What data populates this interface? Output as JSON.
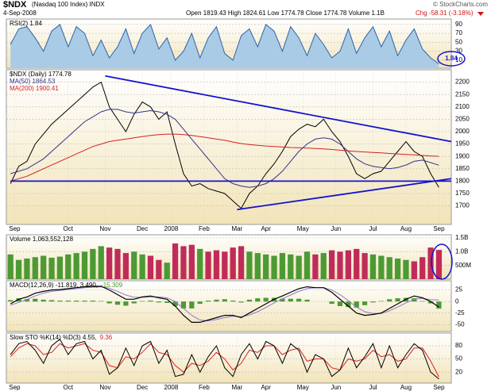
{
  "header": {
    "symbol": "$NDX",
    "name": "(Nasdaq 100 Index) INDX",
    "date": "4-Sep-2008",
    "quote": "Open 1819.43 High 1824.61 Low 1774.78 Close 1774.78 Volume 1.1B",
    "change": "Chg -58.31 (-3.18%)",
    "source": "© StockCharts.com"
  },
  "chart_data": [
    {
      "type": "line",
      "xlim": [
        -0.5,
        53.5
      ],
      "ylim": [
        1625,
        2250
      ],
      "yticks": [
        1700,
        1750,
        1800,
        1850,
        1900,
        1950,
        2000,
        2050,
        2100,
        2150,
        2200
      ],
      "xticks": [
        {
          "value": 0.5,
          "label": "Sep"
        },
        {
          "value": 7,
          "label": "Oct"
        },
        {
          "value": 11.5,
          "label": "Nov"
        },
        {
          "value": 16,
          "label": "Dec"
        },
        {
          "value": 19.5,
          "label": "2008"
        },
        {
          "value": 23.5,
          "label": "Feb"
        },
        {
          "value": 27.5,
          "label": "Mar"
        },
        {
          "value": 31,
          "label": "Apr"
        },
        {
          "value": 35.5,
          "label": "May"
        },
        {
          "value": 39.5,
          "label": "Jun"
        },
        {
          "value": 44,
          "label": "Jul"
        },
        {
          "value": 48,
          "label": "Aug"
        },
        {
          "value": 52,
          "label": "Sep"
        }
      ],
      "series": [
        {
          "name": "$NDX (Daily) 1774.78",
          "color": "#000000",
          "values": [
            1790,
            1860,
            1880,
            1950,
            1990,
            2030,
            2060,
            2090,
            2120,
            2150,
            2180,
            2200,
            2100,
            2050,
            2000,
            2070,
            2120,
            2100,
            2050,
            2080,
            1950,
            1830,
            1780,
            1790,
            1770,
            1760,
            1750,
            1720,
            1690,
            1750,
            1780,
            1830,
            1870,
            1920,
            1980,
            2010,
            2030,
            2020,
            2050,
            2000,
            1960,
            1900,
            1830,
            1810,
            1830,
            1840,
            1880,
            1920,
            1960,
            1920,
            1900,
            1830,
            1774.78
          ]
        },
        {
          "name": "MA(50) 1864.53",
          "color": "#34348a",
          "values": [
            1830,
            1840,
            1850,
            1870,
            1890,
            1920,
            1950,
            1980,
            2010,
            2040,
            2060,
            2080,
            2090,
            2090,
            2080,
            2075,
            2080,
            2085,
            2080,
            2070,
            2050,
            2010,
            1970,
            1930,
            1890,
            1850,
            1810,
            1790,
            1780,
            1775,
            1780,
            1790,
            1810,
            1840,
            1880,
            1920,
            1950,
            1970,
            1975,
            1970,
            1950,
            1920,
            1890,
            1870,
            1860,
            1855,
            1850,
            1855,
            1865,
            1880,
            1885,
            1875,
            1864.53
          ]
        },
        {
          "name": "MA(200) 1900.41",
          "color": "#d42020",
          "values": [
            1800,
            1810,
            1820,
            1835,
            1850,
            1865,
            1880,
            1895,
            1910,
            1925,
            1940,
            1950,
            1960,
            1965,
            1970,
            1975,
            1980,
            1985,
            1988,
            1990,
            1990,
            1988,
            1985,
            1980,
            1975,
            1970,
            1965,
            1958,
            1952,
            1948,
            1945,
            1942,
            1940,
            1938,
            1936,
            1935,
            1934,
            1932,
            1930,
            1928,
            1925,
            1922,
            1920,
            1918,
            1916,
            1914,
            1912,
            1910,
            1908,
            1906,
            1904,
            1902,
            1900.41
          ]
        }
      ],
      "trendlines": [
        {
          "start": [
            11.5,
            2225
          ],
          "end": [
            53.5,
            1960
          ]
        },
        {
          "start": [
            27.5,
            1685
          ],
          "end": [
            53.5,
            1810
          ]
        },
        {
          "start": [
            0,
            1800
          ],
          "end": [
            53.5,
            1800
          ]
        }
      ],
      "trendline_color": "#1414d0"
    },
    {
      "type": "rsi",
      "label": "RSI(2) 1.84",
      "annotation": "1.84",
      "color": "#2f62a8",
      "fill": "#a9cbe6",
      "xlim": [
        -0.5,
        53.5
      ],
      "ylim": [
        -8,
        102
      ],
      "yticks": [
        10,
        30,
        50,
        70,
        90
      ],
      "values": [
        45,
        80,
        85,
        60,
        30,
        75,
        90,
        40,
        85,
        70,
        20,
        55,
        15,
        40,
        80,
        25,
        70,
        90,
        35,
        60,
        10,
        30,
        70,
        15,
        60,
        85,
        25,
        10,
        65,
        80,
        40,
        90,
        75,
        30,
        85,
        60,
        20,
        70,
        45,
        15,
        30,
        80,
        25,
        60,
        85,
        40,
        75,
        20,
        55,
        80,
        35,
        15,
        1.84
      ]
    },
    {
      "type": "volume",
      "label": "Volume 1,063,552,128",
      "up_color": "#4c9a34",
      "down_color": "#c02c5a",
      "xlim": [
        -0.5,
        53.5
      ],
      "ylim": [
        0,
        1615
      ],
      "yticks": [
        {
          "value": 500,
          "label": "500M"
        },
        {
          "value": 1000,
          "label": "1.0B"
        },
        {
          "value": 1500,
          "label": "1.5B"
        }
      ],
      "values": [
        900,
        700,
        750,
        800,
        850,
        780,
        820,
        900,
        950,
        1000,
        1100,
        1200,
        1150,
        1100,
        950,
        1000,
        900,
        850,
        700,
        600,
        1300,
        1200,
        1250,
        1100,
        1000,
        1050,
        1000,
        1150,
        1200,
        1000,
        950,
        900,
        850,
        950,
        900,
        850,
        1000,
        900,
        950,
        1050,
        1000,
        1050,
        1100,
        950,
        900,
        850,
        800,
        750,
        700,
        650,
        800,
        1150,
        1063.55
      ]
    },
    {
      "type": "macd",
      "label": "MACD(12,26,9) -11.819, 3.490,",
      "hist_label": "-15.309",
      "xlim": [
        -0.5,
        53.5
      ],
      "ylim": [
        -65,
        45
      ],
      "yticks": [
        -50,
        -25,
        0,
        25
      ],
      "series": [
        {
          "color": "#000000",
          "values": [
            -5,
            5,
            10,
            18,
            22,
            25,
            26,
            28,
            30,
            32,
            33,
            33,
            25,
            15,
            5,
            5,
            10,
            12,
            8,
            5,
            -10,
            -30,
            -45,
            -45,
            -40,
            -35,
            -30,
            -30,
            -35,
            -25,
            -15,
            -5,
            5,
            12,
            20,
            28,
            32,
            30,
            30,
            20,
            5,
            -10,
            -25,
            -30,
            -28,
            -25,
            -15,
            -5,
            5,
            12,
            8,
            0,
            -11.819
          ]
        },
        {
          "color": "#8a7ad0",
          "values": [
            -8,
            -2,
            5,
            12,
            18,
            22,
            24,
            26,
            28,
            30,
            31,
            32,
            29,
            22,
            14,
            9,
            9,
            10,
            10,
            8,
            0,
            -15,
            -30,
            -40,
            -42,
            -39,
            -35,
            -32,
            -33,
            -29,
            -22,
            -13,
            -3,
            6,
            14,
            22,
            28,
            30,
            30,
            25,
            15,
            2,
            -12,
            -22,
            -26,
            -26,
            -20,
            -12,
            -3,
            5,
            7,
            4,
            3.49
          ]
        },
        {
          "color": "#4c9a34",
          "values": [
            3,
            7,
            5,
            6,
            4,
            3,
            2,
            2,
            2,
            2,
            2,
            1,
            -4,
            -7,
            -9,
            -4,
            1,
            2,
            -2,
            -3,
            -10,
            -15,
            -15,
            -5,
            2,
            4,
            5,
            2,
            -2,
            4,
            7,
            8,
            8,
            6,
            6,
            6,
            4,
            0,
            0,
            -5,
            -10,
            -12,
            -13,
            -8,
            -2,
            1,
            5,
            7,
            8,
            7,
            1,
            -4,
            -15.309
          ]
        }
      ]
    },
    {
      "type": "sto",
      "label": "Slow STO %K(14) %D(3) 4.55,",
      "d_label": "9.36",
      "xlim": [
        -0.5,
        53.5
      ],
      "ylim": [
        -5,
        109
      ],
      "yticks": [
        20,
        50,
        80
      ],
      "xticks": [
        {
          "value": 0.5,
          "label": "Sep"
        },
        {
          "value": 7,
          "label": "Oct"
        },
        {
          "value": 11.5,
          "label": "Nov"
        },
        {
          "value": 16,
          "label": "Dec"
        },
        {
          "value": 19.5,
          "label": "2008"
        },
        {
          "value": 23.5,
          "label": "Feb"
        },
        {
          "value": 27.5,
          "label": "Mar"
        },
        {
          "value": 31,
          "label": "Apr"
        },
        {
          "value": 35.5,
          "label": "May"
        },
        {
          "value": 39.5,
          "label": "Jun"
        },
        {
          "value": 44,
          "label": "Jul"
        },
        {
          "value": 48,
          "label": "Aug"
        },
        {
          "value": 52,
          "label": "Sep"
        }
      ],
      "series": [
        {
          "color": "#000000",
          "values": [
            60,
            85,
            90,
            70,
            40,
            80,
            95,
            60,
            85,
            90,
            50,
            70,
            15,
            30,
            75,
            35,
            80,
            90,
            40,
            70,
            10,
            15,
            60,
            20,
            55,
            80,
            30,
            10,
            60,
            85,
            50,
            90,
            80,
            40,
            85,
            70,
            20,
            60,
            50,
            10,
            25,
            75,
            30,
            55,
            85,
            30,
            80,
            30,
            60,
            85,
            70,
            20,
            4.55
          ]
        },
        {
          "color": "#e02020",
          "values": [
            55,
            75,
            85,
            80,
            60,
            65,
            85,
            75,
            80,
            85,
            70,
            65,
            35,
            30,
            55,
            50,
            65,
            85,
            65,
            60,
            35,
            20,
            40,
            35,
            45,
            65,
            50,
            25,
            40,
            70,
            65,
            80,
            80,
            60,
            70,
            75,
            45,
            50,
            50,
            30,
            25,
            50,
            45,
            50,
            70,
            55,
            60,
            45,
            50,
            75,
            75,
            45,
            9.36
          ]
        }
      ]
    }
  ]
}
